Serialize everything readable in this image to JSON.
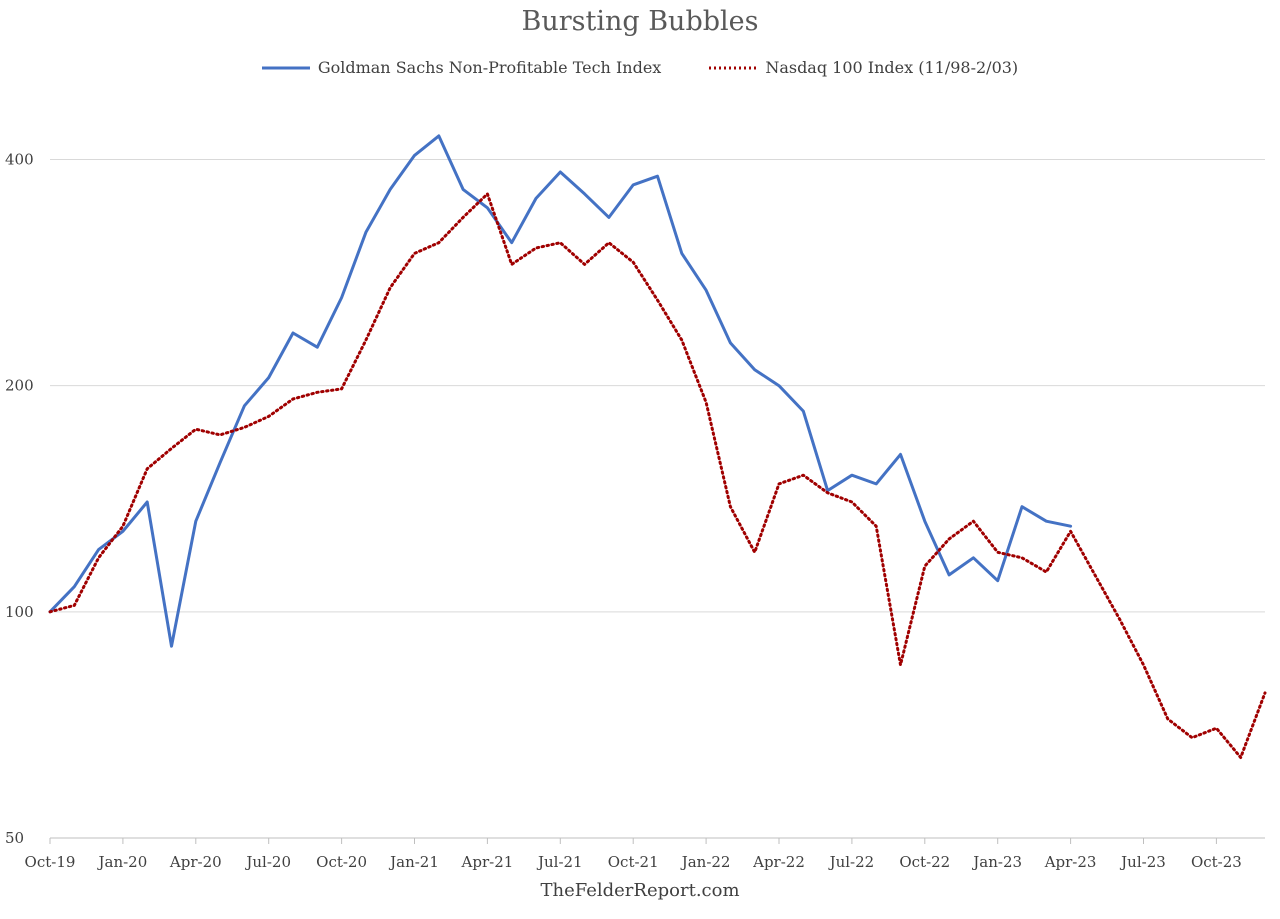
{
  "chart_data": {
    "type": "line",
    "title": "Bursting Bubbles",
    "source": "TheFelderReport.com",
    "y_scale": "log",
    "ylim": [
      50,
      480
    ],
    "y_ticks": [
      50,
      100,
      200,
      400
    ],
    "x_tick_labels": [
      "Oct-19",
      "Jan-20",
      "Apr-20",
      "Jul-20",
      "Oct-20",
      "Jan-21",
      "Apr-21",
      "Jul-21",
      "Oct-21",
      "Jan-22",
      "Apr-22",
      "Jul-22",
      "Oct-22",
      "Jan-23",
      "Apr-23",
      "Jul-23",
      "Oct-23"
    ],
    "grid": "horizontal",
    "legend_position": "top",
    "series": [
      {
        "name": "Goldman Sachs Non-Profitable Tech Index",
        "color": "#4472c4",
        "style": "solid",
        "x": [
          "2019-10",
          "2019-11",
          "2019-12",
          "2020-01",
          "2020-02",
          "2020-03",
          "2020-04",
          "2020-05",
          "2020-06",
          "2020-07",
          "2020-08",
          "2020-09",
          "2020-10",
          "2020-11",
          "2020-12",
          "2021-01",
          "2021-02",
          "2021-03",
          "2021-04",
          "2021-05",
          "2021-06",
          "2021-07",
          "2021-08",
          "2021-09",
          "2021-10",
          "2021-11",
          "2021-12",
          "2022-01",
          "2022-02",
          "2022-03",
          "2022-04",
          "2022-05",
          "2022-06",
          "2022-07",
          "2022-08",
          "2022-09",
          "2022-10",
          "2022-11",
          "2022-12",
          "2023-01",
          "2023-02",
          "2023-03",
          "2023-04"
        ],
        "values": [
          100,
          108,
          121,
          128,
          140,
          90,
          132,
          158,
          188,
          205,
          235,
          225,
          262,
          320,
          365,
          405,
          430,
          365,
          345,
          310,
          355,
          385,
          360,
          335,
          370,
          380,
          300,
          268,
          228,
          210,
          200,
          185,
          145,
          152,
          148,
          162,
          132,
          112,
          118,
          110,
          138,
          132,
          130
        ]
      },
      {
        "name": "Nasdaq 100 Index (11/98-2/03)",
        "color": "#a00000",
        "style": "dotted",
        "x": [
          "2019-10",
          "2019-11",
          "2019-12",
          "2020-01",
          "2020-02",
          "2020-03",
          "2020-04",
          "2020-05",
          "2020-06",
          "2020-07",
          "2020-08",
          "2020-09",
          "2020-10",
          "2020-11",
          "2020-12",
          "2021-01",
          "2021-02",
          "2021-03",
          "2021-04",
          "2021-05",
          "2021-06",
          "2021-07",
          "2021-08",
          "2021-09",
          "2021-10",
          "2021-11",
          "2021-12",
          "2022-01",
          "2022-02",
          "2022-03",
          "2022-04",
          "2022-05",
          "2022-06",
          "2022-07",
          "2022-08",
          "2022-09",
          "2022-10",
          "2022-11",
          "2022-12",
          "2023-01",
          "2023-02",
          "2023-03",
          "2023-04",
          "2023-05",
          "2023-06",
          "2023-07",
          "2023-08",
          "2023-09",
          "2023-10",
          "2023-11",
          "2023-12"
        ],
        "values": [
          100,
          102,
          118,
          130,
          155,
          165,
          175,
          172,
          176,
          182,
          192,
          196,
          198,
          230,
          270,
          300,
          310,
          335,
          360,
          290,
          305,
          310,
          290,
          310,
          292,
          260,
          230,
          190,
          138,
          120,
          148,
          152,
          144,
          140,
          130,
          85,
          115,
          125,
          132,
          120,
          118,
          113,
          128,
          112,
          98,
          85,
          72,
          68,
          70,
          64,
          78
        ]
      }
    ]
  }
}
